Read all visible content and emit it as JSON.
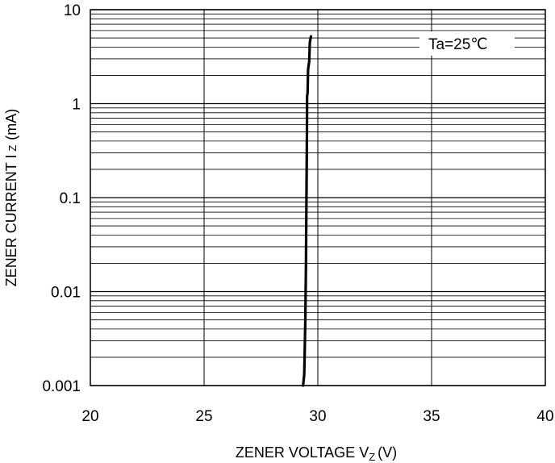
{
  "chart_data": {
    "type": "line",
    "title": "",
    "xlabel": "ZENER VOLTAGE V",
    "xlabel_sub": "Z",
    "xlabel_unit": "(V)",
    "ylabel": "ZENER CURRENT  I",
    "ylabel_sub": "Z",
    "ylabel_unit": "(mA)",
    "x_scale": "linear",
    "y_scale": "log",
    "xlim": [
      20,
      40
    ],
    "ylim": [
      0.001,
      10
    ],
    "x_ticks": [
      20,
      25,
      30,
      35,
      40
    ],
    "x_tick_labels": [
      "20",
      "25",
      "30",
      "35",
      "40"
    ],
    "y_ticks": [
      0.001,
      0.01,
      0.1,
      1,
      10
    ],
    "y_tick_labels": [
      "0.001",
      "0.01",
      "0.1",
      "1",
      "10"
    ],
    "grid": true,
    "annotation": "Ta=25℃",
    "annotation_position": "top-right",
    "series": [
      {
        "color": "#000000",
        "points": [
          [
            29.35,
            0.001
          ],
          [
            29.4,
            0.0013
          ],
          [
            29.42,
            0.002
          ],
          [
            29.45,
            0.005
          ],
          [
            29.48,
            0.02
          ],
          [
            29.5,
            0.1
          ],
          [
            29.52,
            0.5
          ],
          [
            29.53,
            1.2
          ],
          [
            29.55,
            1.3
          ],
          [
            29.57,
            2.3
          ],
          [
            29.6,
            2.6
          ],
          [
            29.62,
            2.8
          ],
          [
            29.65,
            4.5
          ],
          [
            29.7,
            5.2
          ]
        ]
      }
    ]
  }
}
